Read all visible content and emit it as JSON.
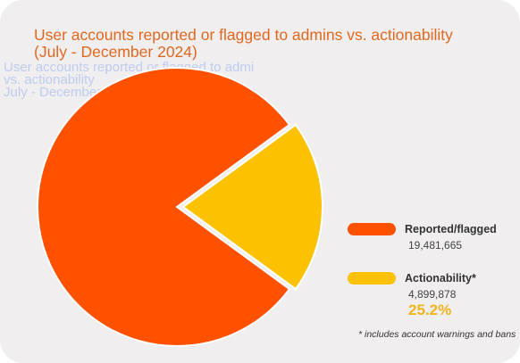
{
  "title_line1": "User accounts reported or flagged to admins vs. actionability",
  "title_line2": "(July - December 2024)",
  "ghost_line1": "User accounts reported or flagged to admi",
  "ghost_line2": "vs. actionability",
  "ghost_line3": "July - December 2024)",
  "colors": {
    "reported": "#ff5100",
    "actionability": "#fcc100",
    "title": "#e0681f",
    "percent": "#f0b51b"
  },
  "chart_data": {
    "type": "pie",
    "categories": [
      "Reported/flagged",
      "Actionability*"
    ],
    "values": [
      19481665,
      4899878
    ],
    "labels": [
      "19,481,665",
      "4,899,878"
    ],
    "annotation": "25.2%",
    "legend_position": "right"
  },
  "legend": {
    "reported_label": "Reported/flagged",
    "reported_value": "19,481,665",
    "action_label": "Actionability*",
    "action_value": "4,899,878",
    "action_percent": "25.2%"
  },
  "footnote": "* includes account warnings and bans"
}
